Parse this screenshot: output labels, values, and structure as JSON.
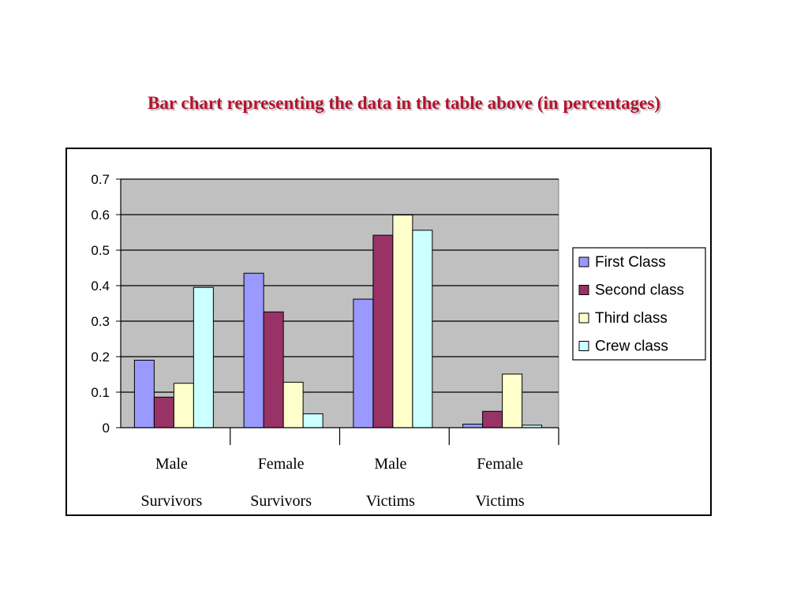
{
  "slide": {
    "title": "Bar chart representing the data in the table above (in percentages)",
    "title_color": "#b5122e"
  },
  "chart_data": {
    "type": "bar",
    "categories": [
      [
        "Male",
        "Survivors"
      ],
      [
        "Female",
        "Survivors"
      ],
      [
        "Male",
        "Victims"
      ],
      [
        "Female",
        "Victims"
      ]
    ],
    "series": [
      {
        "name": "First Class",
        "color": "#9999ff",
        "values": [
          0.19,
          0.435,
          0.362,
          0.01
        ]
      },
      {
        "name": "Second class",
        "color": "#993366",
        "values": [
          0.086,
          0.326,
          0.542,
          0.046
        ]
      },
      {
        "name": "Third class",
        "color": "#ffffcc",
        "values": [
          0.125,
          0.128,
          0.599,
          0.151
        ]
      },
      {
        "name": "Crew class",
        "color": "#ccffff",
        "values": [
          0.395,
          0.039,
          0.556,
          0.007
        ]
      }
    ],
    "yticks": [
      "0",
      "0.1",
      "0.2",
      "0.3",
      "0.4",
      "0.5",
      "0.6",
      "0.7"
    ],
    "ylim": [
      0,
      0.7
    ],
    "xlabel": "",
    "ylabel": "",
    "grid": true,
    "plot_background": "#c0c0c0",
    "legend_position": "right"
  }
}
